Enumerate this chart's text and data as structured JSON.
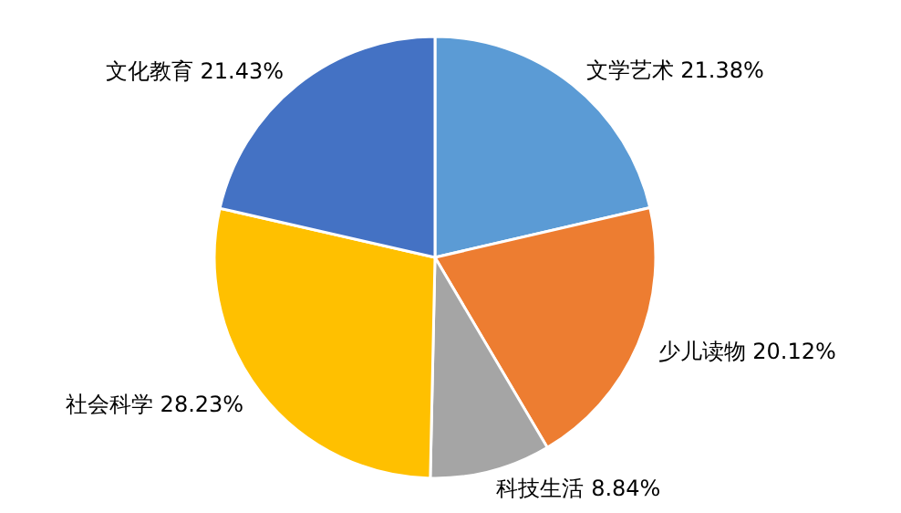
{
  "chart_data": {
    "type": "pie",
    "categories": [
      "文学艺术",
      "少儿读物",
      "科技生活",
      "社会科学",
      "文化教育"
    ],
    "values": [
      21.38,
      20.12,
      8.84,
      28.23,
      21.43
    ],
    "colors": [
      "#5b9bd5",
      "#ed7d31",
      "#a5a5a5",
      "#ffc000",
      "#4472c4"
    ],
    "value_labels": [
      "21.38%",
      "20.12%",
      "8.84%",
      "28.23%",
      "21.43%"
    ]
  }
}
